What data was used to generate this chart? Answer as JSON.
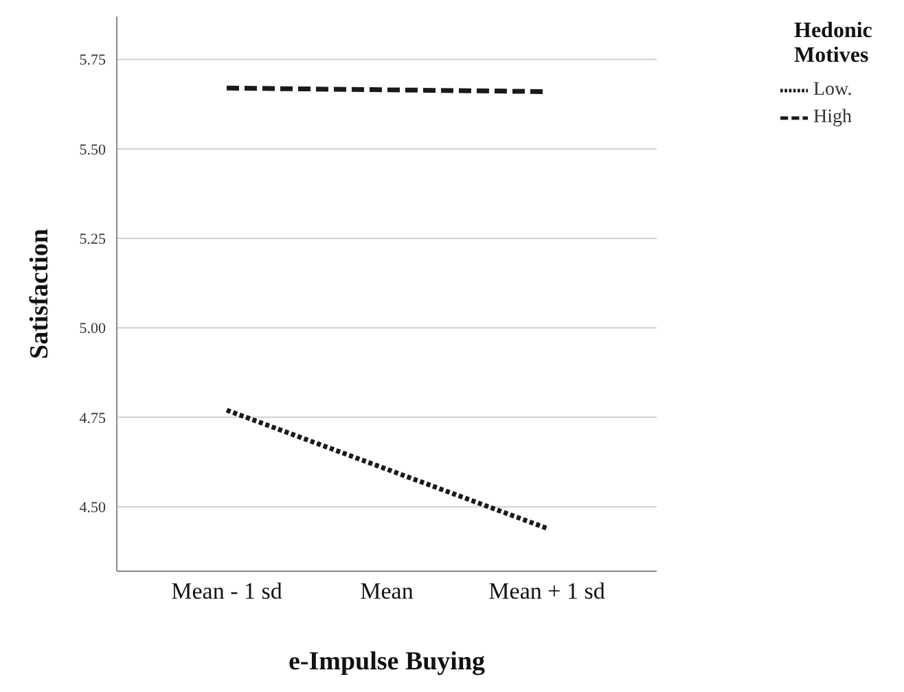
{
  "chart_data": {
    "type": "line",
    "xlabel": "e-Impulse Buying",
    "ylabel": "Satisfaction",
    "legend_title": "Hedonic Motives",
    "categories": [
      "Mean - 1 sd",
      "Mean",
      "Mean + 1 sd"
    ],
    "series": [
      {
        "name": "Low.",
        "color": "#1a1a1a",
        "values": [
          4.77,
          4.605,
          4.44
        ],
        "line_style": "dotted"
      },
      {
        "name": "High",
        "color": "#1a1a1a",
        "values": [
          5.67,
          5.665,
          5.66
        ],
        "line_style": "dashed"
      }
    ],
    "ylim": [
      4.32,
      5.87
    ],
    "yticks": [
      {
        "value": 4.5,
        "label": "4.50"
      },
      {
        "value": 4.75,
        "label": "4.75"
      },
      {
        "value": 5,
        "label": "5.00"
      },
      {
        "value": 5.25,
        "label": "5.25"
      },
      {
        "value": 5.5,
        "label": "5.50"
      },
      {
        "value": 5.75,
        "label": "5.75"
      }
    ],
    "grid": "y",
    "legend": "top right",
    "marker": "none"
  }
}
